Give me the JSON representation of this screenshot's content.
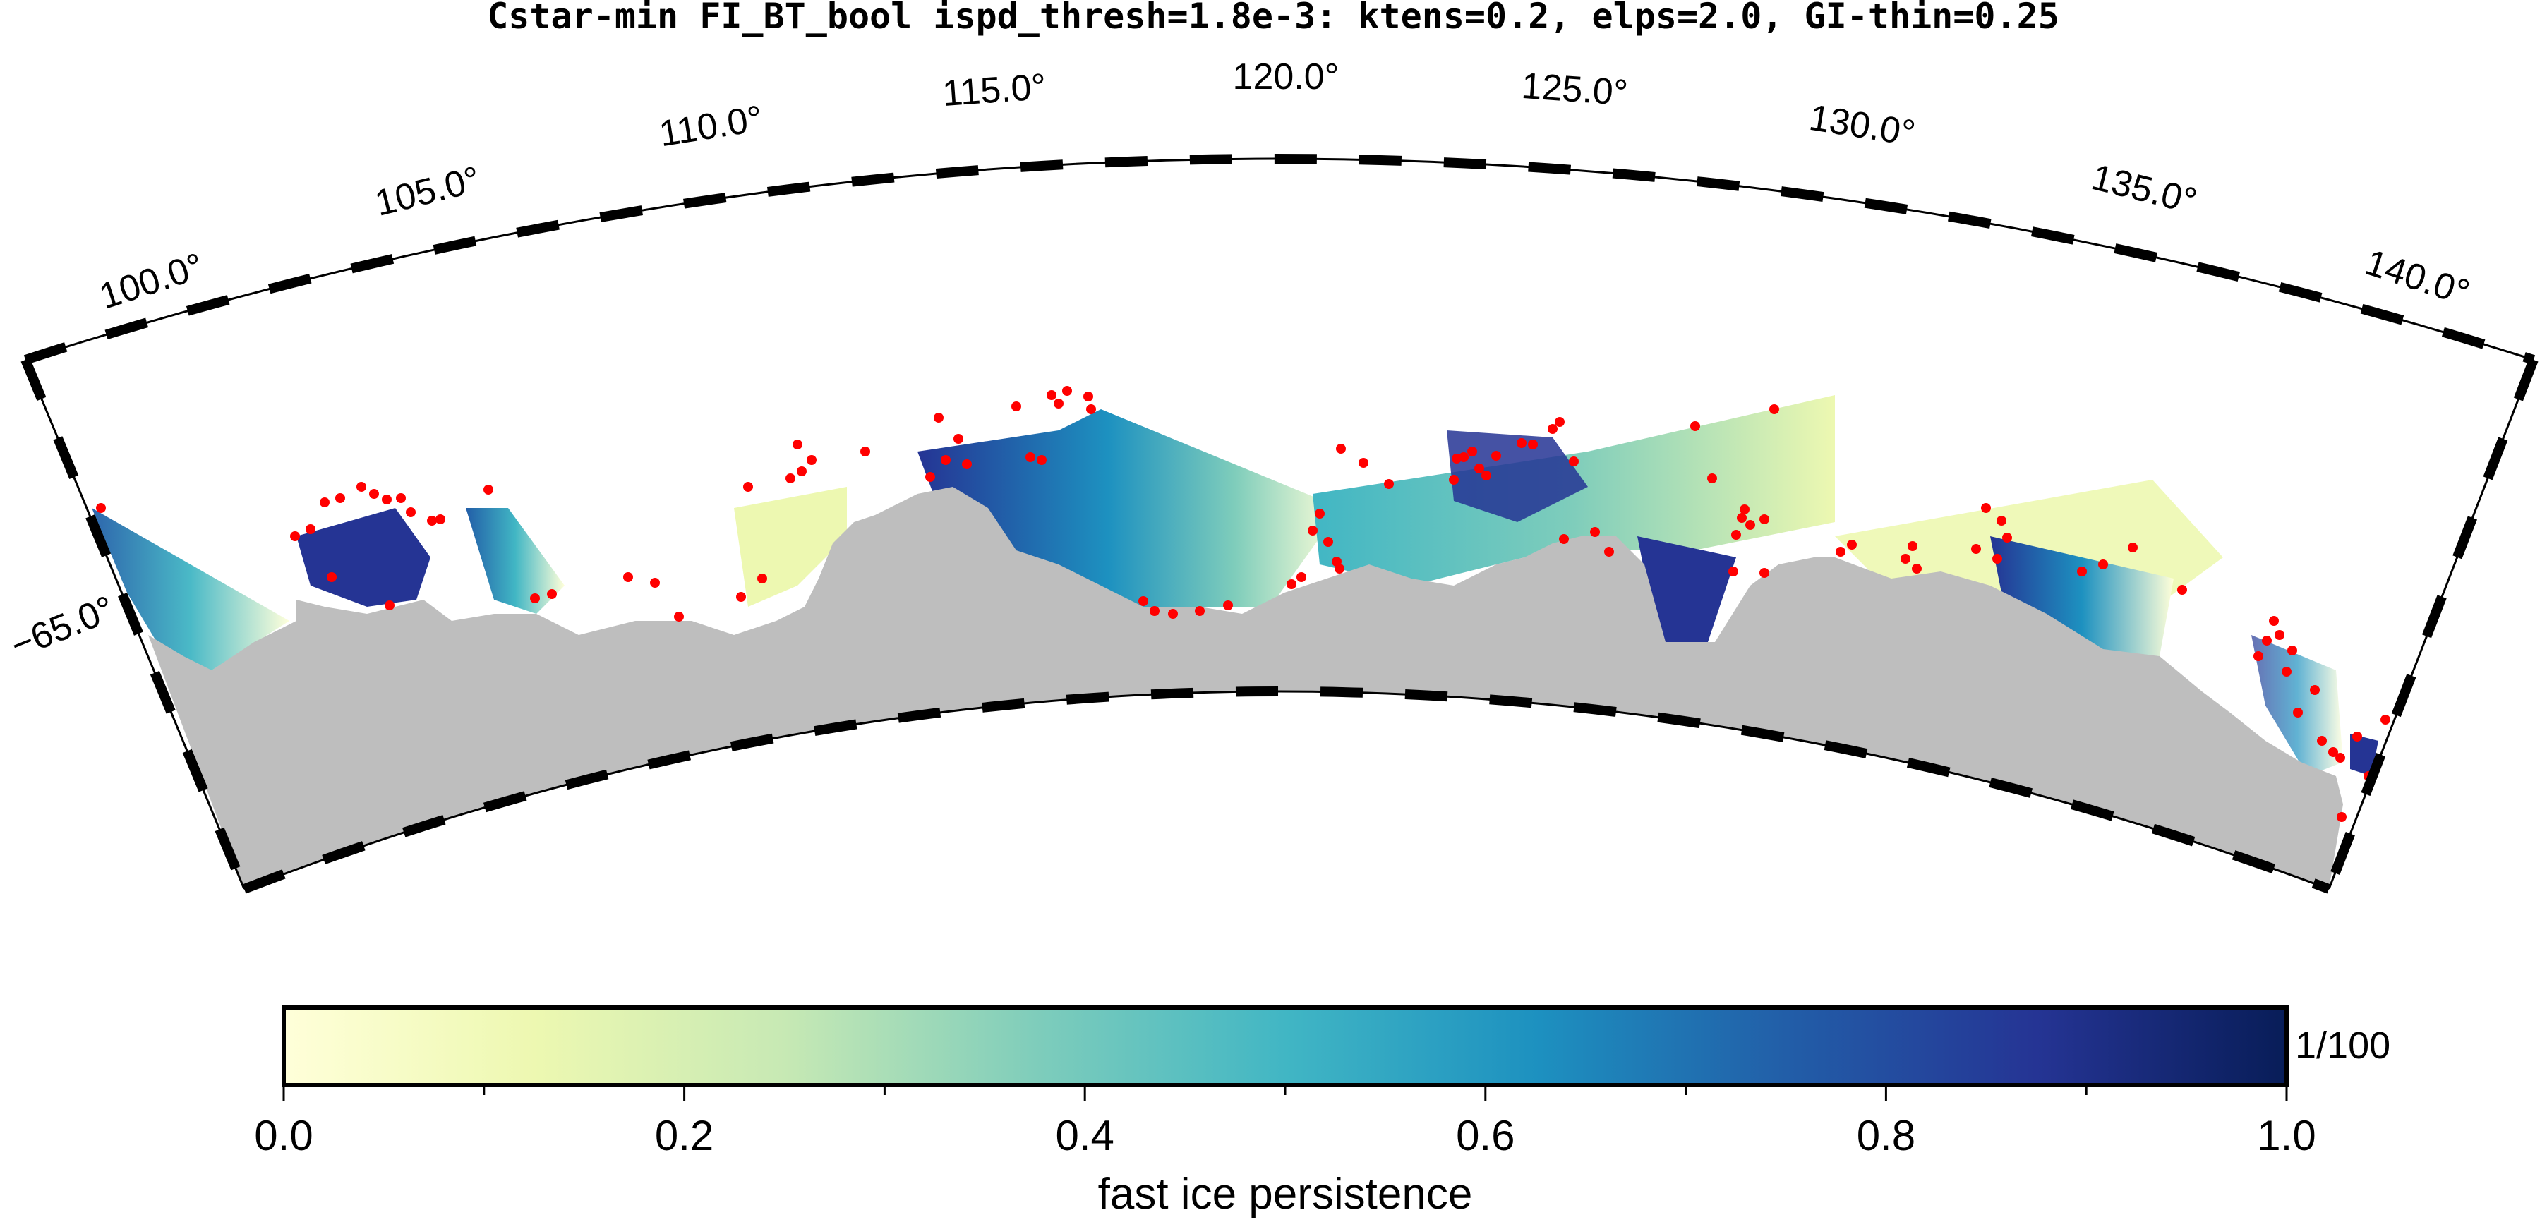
{
  "title": "Cstar-min FI_BT_bool ispd_thresh=1.8e-3: ktens=0.2, elps=2.0, GI-thin=0.25",
  "map": {
    "projection": "polar stereographic sector",
    "lon_range": [
      97.5,
      142.5
    ],
    "lat_range": [
      -68.5,
      -62.5
    ],
    "lon_labels": [
      "100.0°",
      "105.0°",
      "110.0°",
      "115.0°",
      "120.0°",
      "125.0°",
      "130.0°",
      "135.0°",
      "140.0°"
    ],
    "lat_labels": [
      "−65.0°"
    ],
    "land_color": "#bebebe",
    "marker_color": "#ff0000",
    "frame_style": "alternating black/white fancy frame"
  },
  "colorbar": {
    "label": "fast ice persistence",
    "unit": "1/100",
    "tick_labels": [
      "0.0",
      "0.2",
      "0.4",
      "0.6",
      "0.8",
      "1.0"
    ],
    "range": [
      0.0,
      1.0
    ],
    "colormap": "YlGnBu",
    "stops": [
      "#ffffd9",
      "#edf8b1",
      "#c7e9b4",
      "#7fcdbb",
      "#41b6c4",
      "#1d91c0",
      "#225ea8",
      "#253494",
      "#081d58"
    ]
  }
}
